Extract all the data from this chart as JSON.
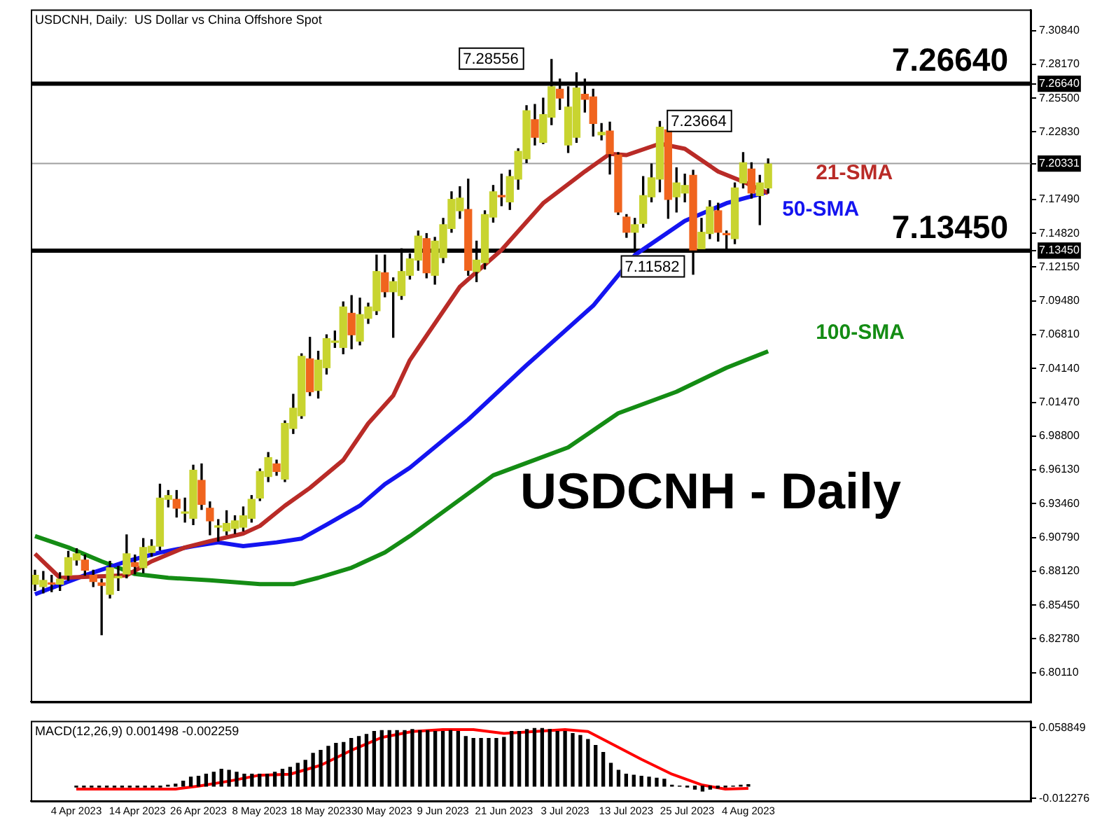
{
  "chart_data": [
    {
      "type": "candlestick",
      "title": "USDCNH, Daily:  US Dollar vs China Offshore Spot",
      "categories": [
        null,
        null,
        null,
        null,
        null,
        null,
        null,
        null,
        null,
        null,
        null,
        null,
        null,
        null,
        null,
        null,
        null,
        null,
        null,
        null,
        null,
        null,
        null,
        null,
        null,
        null,
        null,
        null,
        null,
        null,
        null,
        null,
        null,
        null,
        null,
        null,
        null,
        null,
        null,
        null,
        null,
        null,
        null,
        null,
        null,
        null,
        null,
        null,
        null,
        null,
        null,
        null,
        null,
        null,
        null,
        null,
        null,
        null,
        null,
        null,
        null,
        null,
        null,
        null,
        null,
        null,
        null,
        null,
        null,
        null,
        null,
        null,
        null,
        null,
        null,
        null,
        null,
        null,
        null,
        null,
        null,
        null,
        null,
        null,
        null,
        null,
        null,
        null,
        null,
        null,
        null,
        null,
        null,
        null,
        null,
        null,
        null,
        null,
        null,
        null,
        null,
        null,
        null,
        null,
        null,
        null,
        null,
        null,
        null,
        null,
        null,
        null,
        null,
        null,
        null,
        null,
        null,
        null,
        null,
        null
      ],
      "ohlc": [
        [
          6.871,
          6.882,
          6.866,
          6.878
        ],
        [
          6.869,
          6.881,
          6.864,
          6.874
        ],
        [
          6.872,
          6.878,
          6.865,
          6.871
        ],
        [
          6.871,
          6.88,
          6.866,
          6.875
        ],
        [
          6.878,
          6.897,
          6.874,
          6.892
        ],
        [
          6.89,
          6.899,
          6.886,
          6.895
        ],
        [
          6.89,
          6.894,
          6.878,
          6.882
        ],
        [
          6.878,
          6.882,
          6.869,
          6.873
        ],
        [
          6.872,
          6.875,
          6.831,
          6.87
        ],
        [
          6.863,
          6.889,
          6.86,
          6.884
        ],
        [
          6.876,
          6.885,
          6.866,
          6.877
        ],
        [
          6.879,
          6.91,
          6.876,
          6.895
        ],
        [
          6.888,
          6.894,
          6.879,
          6.885
        ],
        [
          6.884,
          6.907,
          6.88,
          6.9
        ],
        [
          6.896,
          6.906,
          6.893,
          6.901
        ],
        [
          6.901,
          6.95,
          6.898,
          6.939
        ],
        [
          6.938,
          6.945,
          6.932,
          6.941
        ],
        [
          6.938,
          6.945,
          6.924,
          6.931
        ],
        [
          6.927,
          6.939,
          6.92,
          6.928
        ],
        [
          6.923,
          6.965,
          6.918,
          6.961
        ],
        [
          6.953,
          6.966,
          6.93,
          6.934
        ],
        [
          6.931,
          6.936,
          6.91,
          6.921
        ],
        [
          6.916,
          6.922,
          6.905,
          6.917
        ],
        [
          6.913,
          6.929,
          6.91,
          6.919
        ],
        [
          6.915,
          6.925,
          6.911,
          6.921
        ],
        [
          6.916,
          6.932,
          6.913,
          6.925
        ],
        [
          6.923,
          6.941,
          6.92,
          6.938
        ],
        [
          6.939,
          6.962,
          6.937,
          6.96
        ],
        [
          6.956,
          6.975,
          6.952,
          6.971
        ],
        [
          6.966,
          6.969,
          6.957,
          6.96
        ],
        [
          6.954,
          7.0,
          6.952,
          6.998
        ],
        [
          6.994,
          7.021,
          6.99,
          7.01
        ],
        [
          7.004,
          7.053,
          7.002,
          7.051
        ],
        [
          7.049,
          7.066,
          7.02,
          7.023
        ],
        [
          7.024,
          7.055,
          7.018,
          7.048
        ],
        [
          7.042,
          7.068,
          7.037,
          7.065
        ],
        [
          7.062,
          7.071,
          7.058,
          7.063
        ],
        [
          7.058,
          7.094,
          7.053,
          7.09
        ],
        [
          7.085,
          7.099,
          7.057,
          7.068
        ],
        [
          7.063,
          7.097,
          7.06,
          7.084
        ],
        [
          7.081,
          7.093,
          7.077,
          7.09
        ],
        [
          7.087,
          7.131,
          7.084,
          7.118
        ],
        [
          7.117,
          7.131,
          7.098,
          7.102
        ],
        [
          7.102,
          7.113,
          7.066,
          7.11
        ],
        [
          7.099,
          7.136,
          7.096,
          7.118
        ],
        [
          7.115,
          7.132,
          7.112,
          7.128
        ],
        [
          7.127,
          7.15,
          7.119,
          7.146
        ],
        [
          7.144,
          7.148,
          7.113,
          7.117
        ],
        [
          7.115,
          7.145,
          7.108,
          7.142
        ],
        [
          7.129,
          7.16,
          7.125,
          7.155
        ],
        [
          7.152,
          7.181,
          7.149,
          7.175
        ],
        [
          7.166,
          7.185,
          7.16,
          7.176
        ],
        [
          7.167,
          7.191,
          7.115,
          7.119
        ],
        [
          7.118,
          7.142,
          7.11,
          7.127
        ],
        [
          7.125,
          7.166,
          7.12,
          7.163
        ],
        [
          7.161,
          7.186,
          7.157,
          7.181
        ],
        [
          7.178,
          7.195,
          7.17,
          7.177
        ],
        [
          7.173,
          7.198,
          7.167,
          7.193
        ],
        [
          7.191,
          7.215,
          7.183,
          7.213
        ],
        [
          7.207,
          7.249,
          7.204,
          7.245
        ],
        [
          7.238,
          7.25,
          7.218,
          7.224
        ],
        [
          7.22,
          7.255,
          7.219,
          7.242
        ],
        [
          7.24,
          7.28556,
          7.234,
          7.264
        ],
        [
          7.262,
          7.27,
          7.246,
          7.255
        ],
        [
          7.218,
          7.264,
          7.212,
          7.248
        ],
        [
          7.224,
          7.275,
          7.22,
          7.263
        ],
        [
          7.258,
          7.27,
          7.244,
          7.254
        ],
        [
          7.256,
          7.262,
          7.225,
          7.235
        ],
        [
          7.226,
          7.235,
          7.222,
          7.228
        ],
        [
          7.229,
          7.236,
          7.195,
          7.211
        ],
        [
          7.21,
          7.212,
          7.163,
          7.165
        ],
        [
          7.161,
          7.163,
          7.145,
          7.149
        ],
        [
          7.149,
          7.16,
          7.135,
          7.155
        ],
        [
          7.156,
          7.193,
          7.153,
          7.178
        ],
        [
          7.177,
          7.203,
          7.173,
          7.192
        ],
        [
          7.191,
          7.23664,
          7.181,
          7.232
        ],
        [
          7.23,
          7.234,
          7.16,
          7.175
        ],
        [
          7.177,
          7.2,
          7.165,
          7.188
        ],
        [
          7.18,
          7.195,
          7.173,
          7.186
        ],
        [
          7.194,
          7.198,
          7.11582,
          7.135
        ],
        [
          7.136,
          7.16,
          7.134,
          7.149
        ],
        [
          7.148,
          7.174,
          7.144,
          7.169
        ],
        [
          7.166,
          7.172,
          7.142,
          7.149
        ],
        [
          7.148,
          7.15,
          7.134,
          7.147
        ],
        [
          7.144,
          7.188,
          7.14,
          7.184
        ],
        [
          7.188,
          7.212,
          7.184,
          7.204
        ],
        [
          7.199,
          7.204,
          7.176,
          7.18
        ],
        [
          7.178,
          7.194,
          7.155,
          7.188
        ],
        [
          7.184,
          7.207,
          7.18,
          7.203
        ],
        null,
        null,
        null,
        null,
        null,
        null,
        null,
        null,
        null,
        null,
        null,
        null,
        null,
        null,
        null,
        null,
        null,
        null,
        null,
        null,
        null,
        null,
        null,
        null,
        null,
        null,
        null,
        null,
        null,
        null,
        null
      ],
      "colors": [
        "#c8d430",
        "#c8d430",
        "#f0641e",
        "#c8d430",
        "#c8d430",
        "#c8d430",
        "#f0641e",
        "#f0641e",
        "#f0641e",
        "#c8d430",
        "#c8d430",
        "#c8d430",
        "#f0641e",
        "#c8d430",
        "#c8d430",
        "#c8d430",
        "#c8d430",
        "#f0641e",
        "#c8d430",
        "#c8d430",
        "#f0641e",
        "#f0641e",
        "#c8d430",
        "#c8d430",
        "#c8d430",
        "#c8d430",
        "#c8d430",
        "#c8d430",
        "#c8d430",
        "#f0641e",
        "#c8d430",
        "#c8d430",
        "#c8d430",
        "#f0641e",
        "#c8d430",
        "#c8d430",
        "#c8d430",
        "#c8d430",
        "#f0641e",
        "#c8d430",
        "#c8d430",
        "#c8d430",
        "#f0641e",
        "#c8d430",
        "#c8d430",
        "#c8d430",
        "#c8d430",
        "#f0641e",
        "#c8d430",
        "#c8d430",
        "#c8d430",
        "#c8d430",
        "#f0641e",
        "#c8d430",
        "#c8d430",
        "#c8d430",
        "#f0641e",
        "#c8d430",
        "#c8d430",
        "#c8d430",
        "#f0641e",
        "#c8d430",
        "#c8d430",
        "#f0641e",
        "#c8d430",
        "#c8d430",
        "#f0641e",
        "#f0641e",
        "#c8d430",
        "#f0641e",
        "#f0641e",
        "#f0641e",
        "#c8d430",
        "#c8d430",
        "#c8d430",
        "#c8d430",
        "#f0641e",
        "#c8d430",
        "#c8d430",
        "#f0641e",
        "#c8d430",
        "#c8d430",
        "#f0641e",
        "#f0641e",
        "#c8d430",
        "#c8d430",
        "#f0641e",
        "#c8d430",
        "#c8d430",
        null,
        null,
        null,
        null,
        null,
        null,
        null,
        null,
        null,
        null,
        null,
        null,
        null,
        null,
        null,
        null,
        null,
        null,
        null,
        null,
        null,
        null,
        null,
        null,
        null,
        null,
        null,
        null,
        null,
        null,
        null
      ],
      "series": [
        {
          "name": "21-SMA",
          "type": "line",
          "color": "#b92b27",
          "values": [
            6.895,
            null,
            null,
            6.876,
            null,
            null,
            null,
            null,
            null,
            null,
            null,
            6.878,
            null,
            null,
            6.889,
            null,
            null,
            null,
            6.9,
            null,
            null,
            6.905,
            null,
            null,
            null,
            6.911,
            null,
            6.917,
            null,
            null,
            6.933,
            null,
            null,
            6.947,
            null,
            null,
            null,
            6.969,
            null,
            null,
            6.998,
            null,
            null,
            7.02,
            null,
            7.048,
            null,
            null,
            null,
            null,
            null,
            7.106,
            null,
            null,
            null,
            null,
            7.135,
            null,
            null,
            null,
            null,
            7.172,
            null,
            null,
            null,
            null,
            7.197,
            null,
            null,
            7.211,
            null,
            7.21,
            null,
            null,
            null,
            7.219,
            null,
            null,
            7.215,
            null,
            null,
            null,
            7.197,
            null,
            null,
            7.189,
            null,
            null,
            7.18,
            null,
            null,
            null,
            null,
            null,
            null,
            null,
            null,
            null,
            null,
            null,
            null,
            null,
            null,
            null,
            null,
            null,
            null,
            null,
            null,
            null,
            null,
            null,
            null,
            null,
            null,
            null,
            null,
            null,
            null,
            null
          ]
        },
        {
          "name": "50-SMA",
          "type": "line",
          "color": "#1414f0",
          "values": [
            6.863,
            null,
            null,
            null,
            null,
            null,
            6.878,
            null,
            null,
            null,
            null,
            6.889,
            null,
            null,
            null,
            6.896,
            null,
            null,
            null,
            6.901,
            null,
            null,
            6.904,
            null,
            null,
            6.901,
            null,
            null,
            null,
            6.904,
            null,
            null,
            6.907,
            null,
            null,
            6.918,
            null,
            null,
            null,
            6.933,
            null,
            null,
            6.95,
            null,
            null,
            6.963,
            null,
            null,
            null,
            null,
            null,
            null,
            7.001,
            null,
            null,
            null,
            null,
            null,
            null,
            7.044,
            null,
            null,
            null,
            null,
            null,
            null,
            null,
            7.091,
            null,
            null,
            null,
            null,
            7.131,
            null,
            null,
            null,
            null,
            null,
            7.158,
            null,
            null,
            null,
            null,
            7.172,
            null,
            null,
            null,
            null,
            7.181,
            null,
            null,
            null,
            null,
            null,
            null,
            null,
            null,
            null,
            null,
            null,
            null,
            null,
            null,
            null,
            null,
            null,
            null,
            null,
            null,
            null,
            null,
            null,
            null,
            null,
            null,
            null,
            null,
            null,
            null,
            null
          ]
        },
        {
          "name": "100-SMA",
          "type": "line",
          "color": "#148c14",
          "values": [
            6.909,
            null,
            null,
            null,
            6.9,
            null,
            null,
            null,
            6.889,
            null,
            null,
            null,
            6.879,
            null,
            null,
            null,
            6.876,
            null,
            null,
            null,
            null,
            6.874,
            null,
            null,
            null,
            null,
            null,
            6.871,
            null,
            null,
            null,
            6.871,
            null,
            null,
            6.876,
            null,
            null,
            null,
            6.884,
            null,
            null,
            null,
            6.896,
            null,
            null,
            6.909,
            null,
            null,
            null,
            null,
            null,
            null,
            null,
            null,
            null,
            6.957,
            null,
            null,
            null,
            null,
            null,
            null,
            null,
            null,
            6.979,
            null,
            null,
            null,
            null,
            null,
            7.006,
            null,
            null,
            null,
            null,
            null,
            null,
            7.023,
            null,
            null,
            null,
            null,
            null,
            7.042,
            null,
            null,
            null,
            null,
            7.055,
            null,
            null,
            null,
            null,
            null,
            null,
            null,
            null,
            null,
            null,
            null,
            null,
            null,
            null,
            null,
            null,
            null,
            null,
            null,
            null,
            null,
            null,
            null,
            null,
            null,
            null,
            null,
            null,
            null,
            null,
            null
          ]
        }
      ],
      "ylim": [
        6.778,
        7.325
      ],
      "yticks": [
        {
          "value": 7.3084,
          "label": "7.30840"
        },
        {
          "value": 7.2817,
          "label": "7.28170"
        },
        {
          "value": 7.2664,
          "label": "7.26640"
        },
        {
          "value": 7.255,
          "label": "7.25500"
        },
        {
          "value": 7.2283,
          "label": "7.22830"
        },
        {
          "value": 7.20331,
          "label": "7.20331"
        },
        {
          "value": 7.1749,
          "label": "7.17490"
        },
        {
          "value": 7.1482,
          "label": "7.14820"
        },
        {
          "value": 7.1345,
          "label": "7.13450"
        },
        {
          "value": 7.1215,
          "label": "7.12150"
        },
        {
          "value": 7.0948,
          "label": "7.09480"
        },
        {
          "value": 7.0681,
          "label": "7.06810"
        },
        {
          "value": 7.0414,
          "label": "7.04140"
        },
        {
          "value": 7.0147,
          "label": "7.01470"
        },
        {
          "value": 6.988,
          "label": "6.98800"
        },
        {
          "value": 6.9613,
          "label": "6.96130"
        },
        {
          "value": 6.9346,
          "label": "6.93460"
        },
        {
          "value": 6.9079,
          "label": "6.90790"
        },
        {
          "value": 6.8812,
          "label": "6.88120"
        },
        {
          "value": 6.8545,
          "label": "6.85450"
        },
        {
          "value": 6.8278,
          "label": "6.82780"
        },
        {
          "value": 6.8011,
          "label": "6.80110"
        }
      ],
      "ref_lines": [
        {
          "axis": "y",
          "value": 7.2664,
          "label": "7.26640",
          "color": "#000000"
        },
        {
          "axis": "y",
          "value": 7.20331,
          "color": "#a0a0a0"
        },
        {
          "axis": "y",
          "value": 7.1345,
          "label": "7.13450",
          "color": "#000000"
        }
      ],
      "annotations": [
        "USDCNH - Daily",
        "7.28556",
        "7.23664",
        "7.11582"
      ],
      "tick_labels": "y",
      "grid": false,
      "legend": false
    },
    {
      "type": "bar",
      "title": "MACD(12,26,9) 0.001498 -0.002259",
      "categories": [
        "4 Apr 2023",
        null,
        null,
        null,
        null,
        null,
        null,
        null,
        "14 Apr 2023",
        null,
        null,
        null,
        null,
        null,
        null,
        null,
        "26 Apr 2023",
        null,
        null,
        null,
        null,
        null,
        null,
        null,
        "8 May 2023",
        null,
        null,
        null,
        null,
        null,
        null,
        null,
        "18 May 2023",
        null,
        null,
        null,
        null,
        null,
        null,
        null,
        "30 May 2023",
        null,
        null,
        null,
        null,
        null,
        null,
        null,
        "9 Jun 2023",
        null,
        null,
        null,
        null,
        null,
        null,
        null,
        "21 Jun 2023",
        null,
        null,
        null,
        null,
        null,
        null,
        null,
        "3 Jul 2023",
        null,
        null,
        null,
        null,
        null,
        null,
        null,
        "13 Jul 2023",
        null,
        null,
        null,
        null,
        null,
        null,
        null,
        "25 Jul 2023",
        null,
        null,
        null,
        null,
        null,
        null,
        null,
        "4 Aug 2023",
        null,
        null,
        null,
        null,
        null,
        null,
        null,
        null,
        null,
        null,
        null,
        null,
        null,
        null,
        null,
        null,
        null,
        null,
        null,
        null,
        null,
        null,
        null,
        null,
        null,
        null,
        null,
        null,
        null,
        null,
        null
      ],
      "series": [
        {
          "type": "bar",
          "color": "#000000",
          "values": [
            -0.001,
            -0.001,
            -0.001,
            -0.001,
            -0.001,
            -0.001,
            -0.001,
            -0.001,
            -0.001,
            -0.001,
            -0.001,
            -0.001,
            0.001,
            0.002,
            0.005,
            0.009,
            0.01,
            0.012,
            0.014,
            0.017,
            0.016,
            0.014,
            0.012,
            0.012,
            0.012,
            0.012,
            0.014,
            0.017,
            0.019,
            0.023,
            0.026,
            0.033,
            0.036,
            0.04,
            0.043,
            0.044,
            0.048,
            0.05,
            0.052,
            0.055,
            0.056,
            0.056,
            0.056,
            0.056,
            0.057,
            0.056,
            0.056,
            0.055,
            0.055,
            0.056,
            0.055,
            0.05,
            0.048,
            0.048,
            0.048,
            0.048,
            0.049,
            0.055,
            0.055,
            0.057,
            0.058,
            0.058,
            0.057,
            0.055,
            0.055,
            0.053,
            0.051,
            0.047,
            0.041,
            0.034,
            0.023,
            0.016,
            0.012,
            0.011,
            0.01,
            0.009,
            0.008,
            0.007,
            0.001,
            0.0,
            -0.001,
            -0.003,
            -0.005,
            -0.003,
            -0.002,
            -0.001,
            0.0,
            0.001,
            0.0015,
            null,
            null,
            null,
            null,
            null,
            null,
            null,
            null,
            null,
            null,
            null,
            null,
            null,
            null,
            null,
            null,
            null,
            null,
            null,
            null,
            null,
            null,
            null,
            null,
            null,
            null,
            null,
            null,
            null,
            null,
            null
          ]
        },
        {
          "type": "line",
          "color": "#ff0000",
          "values": [
            -0.003,
            null,
            null,
            null,
            null,
            null,
            null,
            null,
            null,
            null,
            null,
            null,
            null,
            -0.003,
            null,
            null,
            0.0,
            null,
            null,
            null,
            0.005,
            null,
            null,
            null,
            0.011,
            null,
            null,
            null,
            0.012,
            null,
            null,
            null,
            0.021,
            null,
            null,
            null,
            0.036,
            null,
            null,
            null,
            0.049,
            null,
            null,
            null,
            0.055,
            null,
            null,
            null,
            0.057,
            null,
            null,
            null,
            0.057,
            null,
            null,
            null,
            0.053,
            null,
            null,
            null,
            0.055,
            null,
            null,
            null,
            0.057,
            null,
            null,
            0.055,
            null,
            null,
            0.043,
            null,
            null,
            null,
            0.027,
            null,
            null,
            null,
            0.012,
            null,
            null,
            null,
            0.001,
            null,
            null,
            -0.003,
            null,
            null,
            -0.0023,
            null,
            null,
            null,
            null,
            null,
            null,
            null,
            null,
            null,
            null,
            null,
            null,
            null,
            null,
            null,
            null,
            null,
            null,
            null,
            null,
            null,
            null,
            null,
            null,
            null,
            null,
            null,
            null,
            null,
            null,
            null
          ]
        }
      ],
      "ylim": [
        -0.015,
        0.0657
      ],
      "yticks": [
        {
          "value": 0.058849,
          "label": "0.058849"
        },
        {
          "value": -0.012276,
          "label": "-0.012276"
        }
      ],
      "grid": false,
      "legend": false
    }
  ]
}
